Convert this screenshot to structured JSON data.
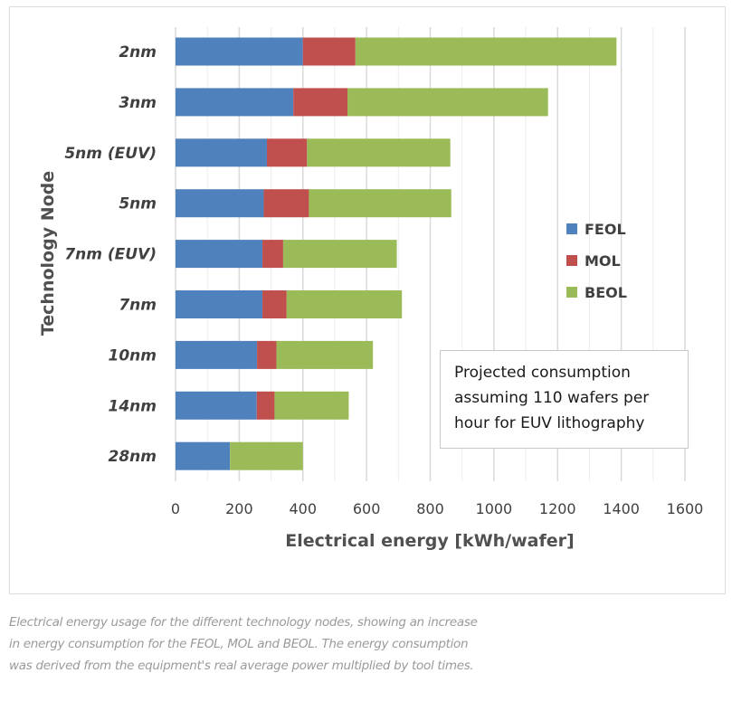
{
  "chart_data": {
    "type": "bar",
    "orientation": "horizontal",
    "stacked": true,
    "title": "",
    "xlabel": "Electrical energy [kWh/wafer]",
    "ylabel": "Technology Node",
    "xlim": [
      0,
      1600
    ],
    "xticks": [
      0,
      200,
      400,
      600,
      800,
      1000,
      1200,
      1400,
      1600
    ],
    "minor_grid_step": 100,
    "grid": true,
    "legend_position": "right",
    "categories": [
      "2nm",
      "3nm",
      "5nm (EUV)",
      "5nm",
      "7nm (EUV)",
      "7nm",
      "10nm",
      "14nm",
      "28nm"
    ],
    "series": [
      {
        "name": "FEOL",
        "color": "#4f81bd",
        "values": [
          400,
          370,
          287,
          277,
          273,
          273,
          256,
          255,
          171
        ]
      },
      {
        "name": "MOL",
        "color": "#c0504d",
        "values": [
          165,
          170,
          126,
          142,
          65,
          76,
          61,
          56,
          0
        ]
      },
      {
        "name": "BEOL",
        "color": "#9bbb59",
        "values": [
          820,
          630,
          450,
          447,
          357,
          362,
          303,
          233,
          229
        ]
      }
    ],
    "annotation": [
      "Projected consumption",
      "assuming 110 wafers per",
      "hour for EUV lithography"
    ]
  },
  "caption": [
    "Electrical energy usage for the different technology nodes, showing an increase",
    "in energy consumption for the FEOL, MOL and BEOL. The energy consumption",
    "was derived from the equipment's real average power multiplied by tool times."
  ]
}
